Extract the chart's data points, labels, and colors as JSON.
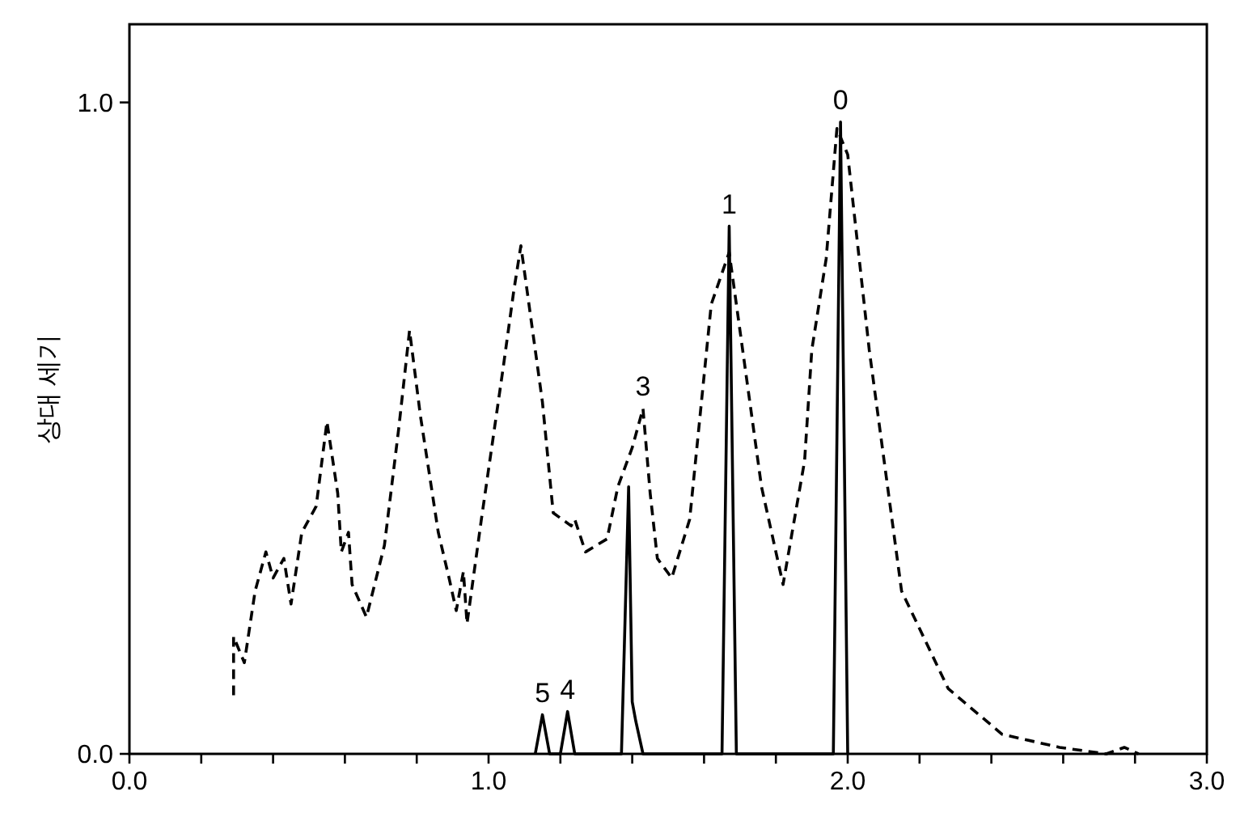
{
  "chart_data": {
    "type": "line",
    "ylabel": "상대 세기",
    "xlim": [
      0,
      3
    ],
    "ylim": [
      0,
      1.12
    ],
    "xticks": [
      {
        "value": 0,
        "label": "0.0"
      },
      {
        "value": 0.2,
        "label": null
      },
      {
        "value": 0.4,
        "label": null
      },
      {
        "value": 0.6,
        "label": null
      },
      {
        "value": 0.8,
        "label": null
      },
      {
        "value": 1,
        "label": "1.0"
      },
      {
        "value": 1.2,
        "label": null
      },
      {
        "value": 1.4,
        "label": null
      },
      {
        "value": 1.6,
        "label": null
      },
      {
        "value": 1.8,
        "label": null
      },
      {
        "value": 2,
        "label": "2.0"
      },
      {
        "value": 2.2,
        "label": null
      },
      {
        "value": 2.4,
        "label": null
      },
      {
        "value": 2.6,
        "label": null
      },
      {
        "value": 2.8,
        "label": null
      },
      {
        "value": 3,
        "label": "3.0"
      }
    ],
    "yticks": [
      {
        "value": 0,
        "label": "0.0"
      },
      {
        "value": 1,
        "label": "1.0"
      }
    ],
    "grid": false,
    "marker": "none",
    "series": [
      {
        "color": "#000000",
        "line_style": "dashed",
        "x": [
          0.29,
          0.29,
          0.32,
          0.35,
          0.38,
          0.4,
          0.43,
          0.45,
          0.48,
          0.52,
          0.55,
          0.58,
          0.59,
          0.61,
          0.62,
          0.66,
          0.71,
          0.75,
          0.78,
          0.81,
          0.86,
          0.89,
          0.91,
          0.93,
          0.94,
          0.98,
          1.04,
          1.07,
          1.09,
          1.15,
          1.18,
          1.23,
          1.24,
          1.27,
          1.33,
          1.36,
          1.4,
          1.43,
          1.45,
          1.47,
          1.51,
          1.56,
          1.62,
          1.67,
          1.7,
          1.76,
          1.82,
          1.88,
          1.9,
          1.94,
          1.97,
          2.0,
          2.06,
          2.15,
          2.28,
          2.43,
          2.59,
          2.72,
          2.77,
          2.81
        ],
        "values": [
          0.09,
          0.18,
          0.14,
          0.25,
          0.31,
          0.27,
          0.3,
          0.23,
          0.34,
          0.38,
          0.51,
          0.4,
          0.31,
          0.34,
          0.26,
          0.21,
          0.32,
          0.5,
          0.65,
          0.52,
          0.34,
          0.27,
          0.22,
          0.28,
          0.2,
          0.36,
          0.59,
          0.71,
          0.78,
          0.54,
          0.37,
          0.35,
          0.36,
          0.31,
          0.33,
          0.41,
          0.47,
          0.53,
          0.4,
          0.3,
          0.27,
          0.36,
          0.69,
          0.77,
          0.65,
          0.41,
          0.26,
          0.45,
          0.62,
          0.76,
          0.96,
          0.92,
          0.62,
          0.25,
          0.1,
          0.03,
          0.01,
          0.0,
          0.01,
          0.0
        ]
      },
      {
        "color": "#000000",
        "line_style": "solid",
        "x": [
          1.13,
          1.15,
          1.17,
          1.2,
          1.22,
          1.24,
          1.37,
          1.39,
          1.4,
          1.41,
          1.43,
          1.65,
          1.67,
          1.69,
          1.96,
          1.98,
          2.0
        ],
        "values": [
          0,
          0.06,
          0,
          0,
          0.065,
          0,
          0,
          0.41,
          0.08,
          0.05,
          0,
          0,
          0.81,
          0,
          0,
          0.97,
          0
        ]
      }
    ],
    "annotations": [
      {
        "text": "0",
        "x": 1.98,
        "y": 0.97
      },
      {
        "text": "1",
        "x": 1.67,
        "y": 0.81
      },
      {
        "text": "3",
        "x": 1.43,
        "y": 0.53
      },
      {
        "text": "4",
        "x": 1.22,
        "y": 0.065
      },
      {
        "text": "5",
        "x": 1.15,
        "y": 0.06
      }
    ]
  }
}
